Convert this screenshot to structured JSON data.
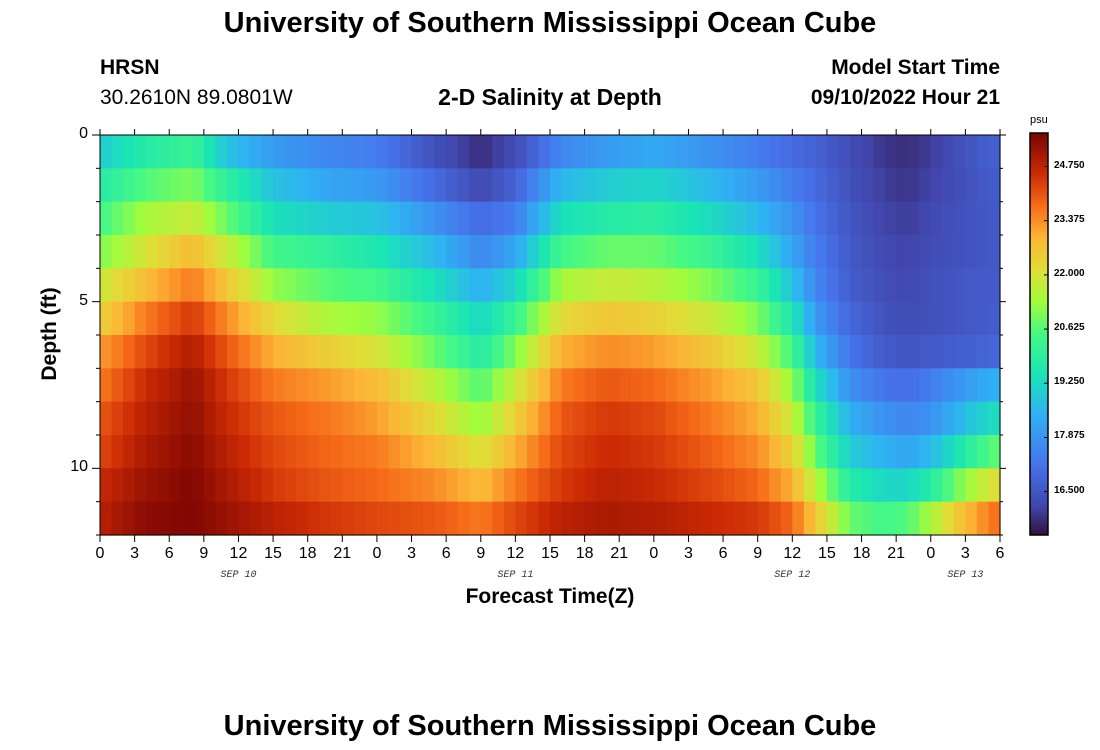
{
  "header": {
    "main_title": "University of Southern Mississippi Ocean Cube",
    "station": "HRSN",
    "coords": "30.2610N  89.0801W",
    "subtitle": "2-D Salinity at Depth",
    "model_start_label": "Model Start Time",
    "model_start_value": "09/10/2022 Hour 21"
  },
  "footer": {
    "main_title": "University of Southern Mississippi Ocean Cube"
  },
  "chart_data": {
    "type": "heatmap",
    "title": "2-D Salinity at Depth",
    "xlabel": "Forecast Time(Z)",
    "ylabel": "Depth (ft)",
    "x_tick_labels": [
      "0",
      "3",
      "6",
      "9",
      "12",
      "15",
      "18",
      "21",
      "0",
      "3",
      "6",
      "9",
      "12",
      "15",
      "18",
      "21",
      "0",
      "3",
      "6",
      "9",
      "12",
      "15",
      "18",
      "21",
      "0",
      "3",
      "6"
    ],
    "x_range_hours": [
      0,
      78
    ],
    "date_labels": [
      {
        "text": "SEP 10",
        "hour": 12
      },
      {
        "text": "SEP 11",
        "hour": 36
      },
      {
        "text": "SEP 12",
        "hour": 60
      },
      {
        "text": "SEP 13",
        "hour": 75
      }
    ],
    "y_tick_labels": [
      "0",
      "5",
      "10"
    ],
    "y_ticks": [
      0,
      5,
      10
    ],
    "y_range_ft": [
      0,
      12
    ],
    "depth_rows": 12,
    "colorbar": {
      "unit": "psu",
      "min": 15.4,
      "max": 25.6,
      "tick_values": [
        24.75,
        23.375,
        22.0,
        20.625,
        19.25,
        17.875,
        16.5
      ],
      "tick_labels": [
        "24.750",
        "23.375",
        "22.000",
        "20.625",
        "19.250",
        "17.875",
        "16.500"
      ]
    },
    "salinity_keyframes": {
      "hours": [
        0,
        4,
        8,
        11,
        15,
        20,
        24,
        29,
        33,
        36,
        40,
        44,
        48,
        53,
        57,
        60,
        62,
        65,
        68,
        70,
        72,
        74,
        76,
        78
      ],
      "rows": [
        [
          19.0,
          19.8,
          20.2,
          18.8,
          18.0,
          17.6,
          17.4,
          16.4,
          15.8,
          16.3,
          17.6,
          18.0,
          18.3,
          17.8,
          17.4,
          17.0,
          16.8,
          16.3,
          15.9,
          15.8,
          16.0,
          16.3,
          16.6,
          16.8
        ],
        [
          19.8,
          20.6,
          21.0,
          20.0,
          18.8,
          18.2,
          18.0,
          17.0,
          16.2,
          16.8,
          18.6,
          19.0,
          19.2,
          18.6,
          18.0,
          17.4,
          17.0,
          16.4,
          16.0,
          15.9,
          16.1,
          16.3,
          16.5,
          16.7
        ],
        [
          20.4,
          21.4,
          21.8,
          20.8,
          19.4,
          19.0,
          18.8,
          17.8,
          17.0,
          17.4,
          19.4,
          19.8,
          19.9,
          19.3,
          18.6,
          17.8,
          17.2,
          16.5,
          16.1,
          16.0,
          16.2,
          16.4,
          16.5,
          16.6
        ],
        [
          21.0,
          22.0,
          22.8,
          21.8,
          20.4,
          20.0,
          19.6,
          18.6,
          17.6,
          18.2,
          20.4,
          20.8,
          20.8,
          20.2,
          19.4,
          18.2,
          17.4,
          16.6,
          16.2,
          16.1,
          16.3,
          16.4,
          16.5,
          16.6
        ],
        [
          21.8,
          22.8,
          23.6,
          22.6,
          21.2,
          20.6,
          20.4,
          19.4,
          18.4,
          19.2,
          21.4,
          21.8,
          21.6,
          21.0,
          20.2,
          18.8,
          17.6,
          16.7,
          16.3,
          16.2,
          16.4,
          16.5,
          16.6,
          16.6
        ],
        [
          22.4,
          23.6,
          24.4,
          23.4,
          22.2,
          21.4,
          21.2,
          20.2,
          19.2,
          20.2,
          22.2,
          22.6,
          22.4,
          21.8,
          21.0,
          19.6,
          18.0,
          16.9,
          16.4,
          16.3,
          16.4,
          16.5,
          16.6,
          16.7
        ],
        [
          23.2,
          24.2,
          24.9,
          24.0,
          23.0,
          22.4,
          22.0,
          20.8,
          19.8,
          21.0,
          23.0,
          23.4,
          23.2,
          22.6,
          21.8,
          20.4,
          18.6,
          17.2,
          16.6,
          16.5,
          16.6,
          16.7,
          16.8,
          16.9
        ],
        [
          23.6,
          24.6,
          25.2,
          24.4,
          23.6,
          23.2,
          22.8,
          21.6,
          20.6,
          21.8,
          23.6,
          24.0,
          23.8,
          23.2,
          22.6,
          21.2,
          19.4,
          17.8,
          17.2,
          17.1,
          17.4,
          17.8,
          18.2,
          18.5
        ],
        [
          24.0,
          24.8,
          25.3,
          24.6,
          24.0,
          23.6,
          23.2,
          22.2,
          21.2,
          22.4,
          24.0,
          24.4,
          24.2,
          23.6,
          23.0,
          21.8,
          20.2,
          18.4,
          17.8,
          17.6,
          17.8,
          18.4,
          19.0,
          19.4
        ],
        [
          24.2,
          25.0,
          25.4,
          24.8,
          24.2,
          23.8,
          23.6,
          22.8,
          22.0,
          23.0,
          24.2,
          24.6,
          24.4,
          23.9,
          23.4,
          22.4,
          20.8,
          19.0,
          18.4,
          18.2,
          18.6,
          19.4,
          20.2,
          20.8
        ],
        [
          24.6,
          25.2,
          25.5,
          25.0,
          24.4,
          24.0,
          23.8,
          23.4,
          22.8,
          23.6,
          24.4,
          24.8,
          24.6,
          24.2,
          23.8,
          23.0,
          21.6,
          19.8,
          19.2,
          19.2,
          19.8,
          20.8,
          21.6,
          22.2
        ],
        [
          24.8,
          25.4,
          25.5,
          25.2,
          24.8,
          24.4,
          24.2,
          24.0,
          23.6,
          24.2,
          24.8,
          25.0,
          24.9,
          24.6,
          24.4,
          23.8,
          22.6,
          20.8,
          20.4,
          20.6,
          21.4,
          22.4,
          23.2,
          23.8
        ]
      ]
    }
  }
}
